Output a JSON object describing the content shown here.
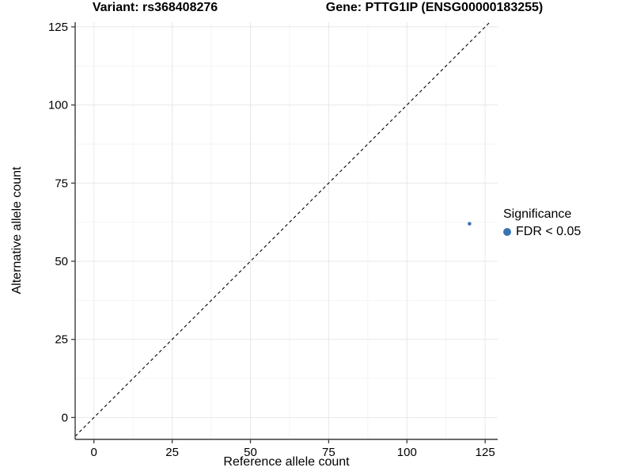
{
  "chart_data": {
    "type": "scatter",
    "title_left": "Variant: rs368408276",
    "title_right": "Gene: PTTG1IP (ENSG00000183255)",
    "xlabel": "Reference allele count",
    "ylabel": "Alternative allele count",
    "x_ticks": [
      0,
      25,
      50,
      75,
      100,
      125
    ],
    "y_ticks": [
      0,
      25,
      50,
      75,
      100,
      125
    ],
    "minor_ticks": [
      12.5,
      37.5,
      62.5,
      87.5,
      112.5
    ],
    "xlim": [
      -6,
      129
    ],
    "ylim": [
      -7,
      126.5
    ],
    "grid": true,
    "legend_position": "right",
    "series": [
      {
        "name": "FDR < 0.05",
        "points": [
          {
            "x": 120,
            "y": 62
          }
        ]
      }
    ],
    "identity_line": {
      "style": "dashed",
      "from": -6,
      "to": 126.5
    },
    "legend": {
      "title": "Significance",
      "items": [
        {
          "label": "FDR < 0.05",
          "color": "#3973b3"
        }
      ]
    },
    "colors": {
      "point": "#3973b3",
      "grid_major": "#e8e8e8",
      "grid_minor": "#f4f4f4",
      "axis": "#3c3c3c",
      "text": "#000000",
      "identity_line": "#000000",
      "background": "#ffffff"
    }
  }
}
